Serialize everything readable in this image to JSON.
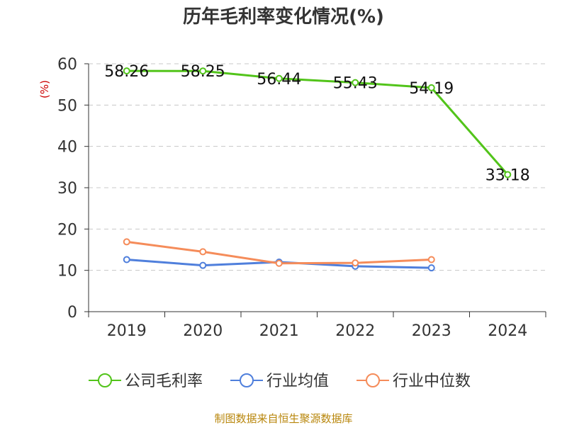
{
  "chart_data": {
    "type": "line",
    "title": "历年毛利率变化情况(%)",
    "ylabel": "(%)",
    "xlabel": "",
    "categories": [
      "2019",
      "2020",
      "2021",
      "2022",
      "2023",
      "2024"
    ],
    "ylim": [
      0,
      60
    ],
    "yticks": [
      0,
      10,
      20,
      30,
      40,
      50,
      60
    ],
    "grid": true,
    "legend_position": "bottom",
    "series": [
      {
        "name": "公司毛利率",
        "color": "#52c41a",
        "values": [
          58.26,
          58.25,
          56.44,
          55.43,
          54.19,
          33.18
        ],
        "labels": [
          "58.26",
          "58.25",
          "56.44",
          "55.43",
          "54.19",
          "33.18"
        ]
      },
      {
        "name": "行业均值",
        "color": "#4f7fdc",
        "values": [
          12.6,
          11.2,
          12.0,
          11.0,
          10.6,
          null
        ]
      },
      {
        "name": "行业中位数",
        "color": "#f58c5a",
        "values": [
          16.9,
          14.5,
          11.7,
          11.8,
          12.6,
          null
        ]
      }
    ]
  },
  "footer": {
    "source": "制图数据来自恒生聚源数据库"
  }
}
